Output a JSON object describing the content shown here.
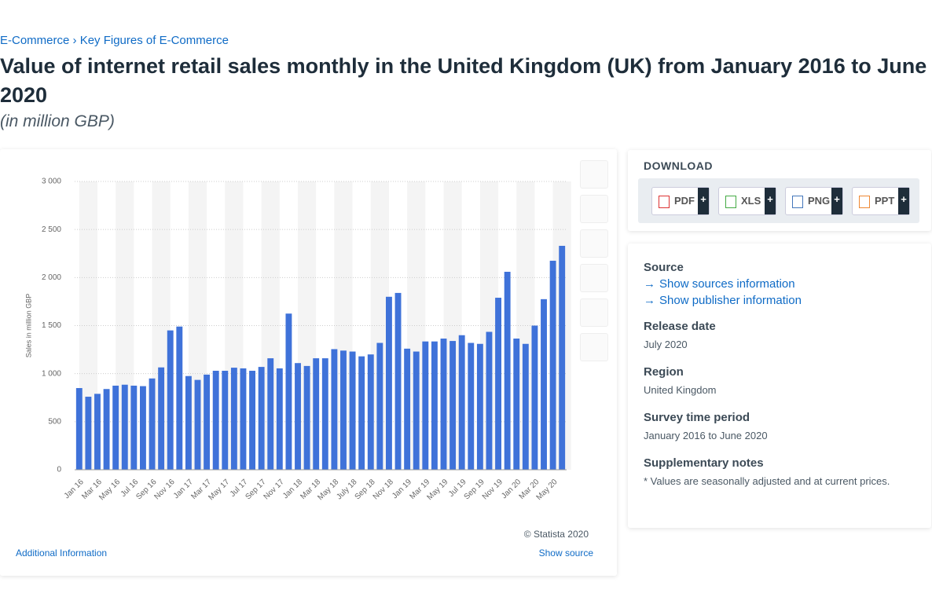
{
  "page": {
    "breadcrumb": [
      "E-Commerce",
      "Key Figures of E-Commerce"
    ],
    "title": "Value of internet retail sales monthly in the United Kingdom (UK) from January 2016 to June 2020",
    "subtitle": "(in million GBP)",
    "copyright": "© Statista 2020",
    "additional_info": "Additional Information",
    "show_source": "Show source",
    "download": {
      "heading": "DOWNLOAD",
      "formats": [
        "PDF",
        "XLS",
        "PNG",
        "PPT"
      ],
      "plus": "+"
    },
    "details": [
      {
        "heading": "Source",
        "links": [
          "Show sources information",
          "Show publisher information"
        ]
      },
      {
        "heading": "Release date",
        "text": "July 2020"
      },
      {
        "heading": "Region",
        "text": "United Kingdom"
      },
      {
        "heading": "Survey time period",
        "text": "January 2016 to June 2020"
      },
      {
        "heading": "Supplementary notes",
        "text": "* Values are seasonally adjusted and at current prices."
      }
    ]
  },
  "chart_data": {
    "type": "bar",
    "y_label": "Sales in million GBP",
    "color": "#3f72d9",
    "grid": true,
    "categories": [
      "Jan 16",
      null,
      "Mar 16",
      null,
      "May 16",
      null,
      "Jul 16",
      null,
      "Sep 16",
      null,
      "Nov 16",
      null,
      "Jan 17",
      null,
      "Mar 17",
      null,
      "May 17",
      null,
      "Jul 17",
      null,
      "Sep 17",
      null,
      "Nov 17",
      null,
      "Jan 18",
      null,
      "Mar 18",
      null,
      "May 18",
      null,
      "July 18",
      null,
      "Sep 18",
      null,
      "Nov 18",
      null,
      "Jan 19",
      null,
      "Mar 19",
      null,
      "May 19",
      null,
      "Jul 19",
      null,
      "Sep 19",
      null,
      "Nov 19",
      null,
      "Jan 20",
      null,
      "Mar 20",
      null,
      "May 20",
      null
    ],
    "values": [
      850,
      760,
      790,
      840,
      875,
      885,
      875,
      870,
      950,
      1065,
      1450,
      1490,
      975,
      935,
      990,
      1030,
      1030,
      1062,
      1055,
      1030,
      1070,
      1160,
      1055,
      1625,
      1110,
      1080,
      1160,
      1160,
      1255,
      1240,
      1230,
      1180,
      1200,
      1320,
      1800,
      1840,
      1260,
      1230,
      1335,
      1335,
      1365,
      1340,
      1400,
      1320,
      1310,
      1435,
      1790,
      2060,
      1365,
      1310,
      1500,
      1775,
      2175,
      2330
    ],
    "ylim": [
      0,
      3000
    ],
    "yticks": [
      0,
      500,
      {
        "value": 1000,
        "label": "1 000"
      },
      {
        "value": 1500,
        "label": "1 500"
      },
      {
        "value": 2000,
        "label": "2 000"
      },
      {
        "value": 2500,
        "label": "2 500"
      },
      {
        "value": 3000,
        "label": "3 000"
      }
    ]
  }
}
